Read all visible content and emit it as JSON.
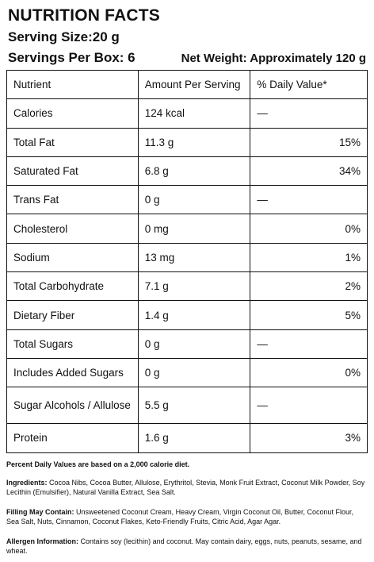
{
  "header": {
    "title": "NUTRITION FACTS",
    "serving_size": "Serving Size:20 g",
    "servings_per_box": "Servings Per Box: 6",
    "net_weight": "Net Weight: Approximately 120 g"
  },
  "table": {
    "columns": [
      "Nutrient",
      "Amount Per Serving",
      "% Daily Value*"
    ],
    "rows": [
      {
        "nutrient": "Calories",
        "amount": "124 kcal",
        "dv": "—"
      },
      {
        "nutrient": "Total Fat",
        "amount": "11.3 g",
        "dv": "15%"
      },
      {
        "nutrient": "Saturated Fat",
        "amount": "6.8 g",
        "dv": "34%"
      },
      {
        "nutrient": "Trans Fat",
        "amount": "0 g",
        "dv": "—"
      },
      {
        "nutrient": "Cholesterol",
        "amount": "0 mg",
        "dv": "0%"
      },
      {
        "nutrient": "Sodium",
        "amount": "13 mg",
        "dv": "1%"
      },
      {
        "nutrient": "Total Carbohydrate",
        "amount": "7.1 g",
        "dv": "2%"
      },
      {
        "nutrient": "Dietary Fiber",
        "amount": "1.4 g",
        "dv": "5%"
      },
      {
        "nutrient": "Total Sugars",
        "amount": "0 g",
        "dv": "—"
      },
      {
        "nutrient": "Includes Added Sugars",
        "amount": "0 g",
        "dv": "0%"
      },
      {
        "nutrient": "Sugar Alcohols / Allulose",
        "amount": "5.5 g",
        "dv": "—"
      },
      {
        "nutrient": "Protein",
        "amount": "1.6 g",
        "dv": "3%"
      }
    ]
  },
  "notes": {
    "daily_values": "Percent Daily Values are based on a 2,000 calorie diet.",
    "ingredients_label": "Ingredients:",
    "ingredients": "Cocoa Nibs, Cocoa Butter, Allulose, Erythritol, Stevia, Monk Fruit Extract, Coconut Milk Powder, Soy Lecithin (Emulsifier), Natural Vanilla Extract, Sea Salt.",
    "filling_label": "Filling May Contain:",
    "filling": "Unsweetened Coconut Cream, Heavy Cream, Virgin Coconut Oil, Butter, Coconut Flour, Sea Salt, Nuts, Cinnamon, Coconut Flakes, Keto-Friendly Fruits, Citric Acid, Agar Agar.",
    "allergen_label": "Allergen Information:",
    "allergen": "Contains soy (lecithin) and coconut. May contain dairy, eggs, nuts, peanuts, sesame, and wheat."
  }
}
